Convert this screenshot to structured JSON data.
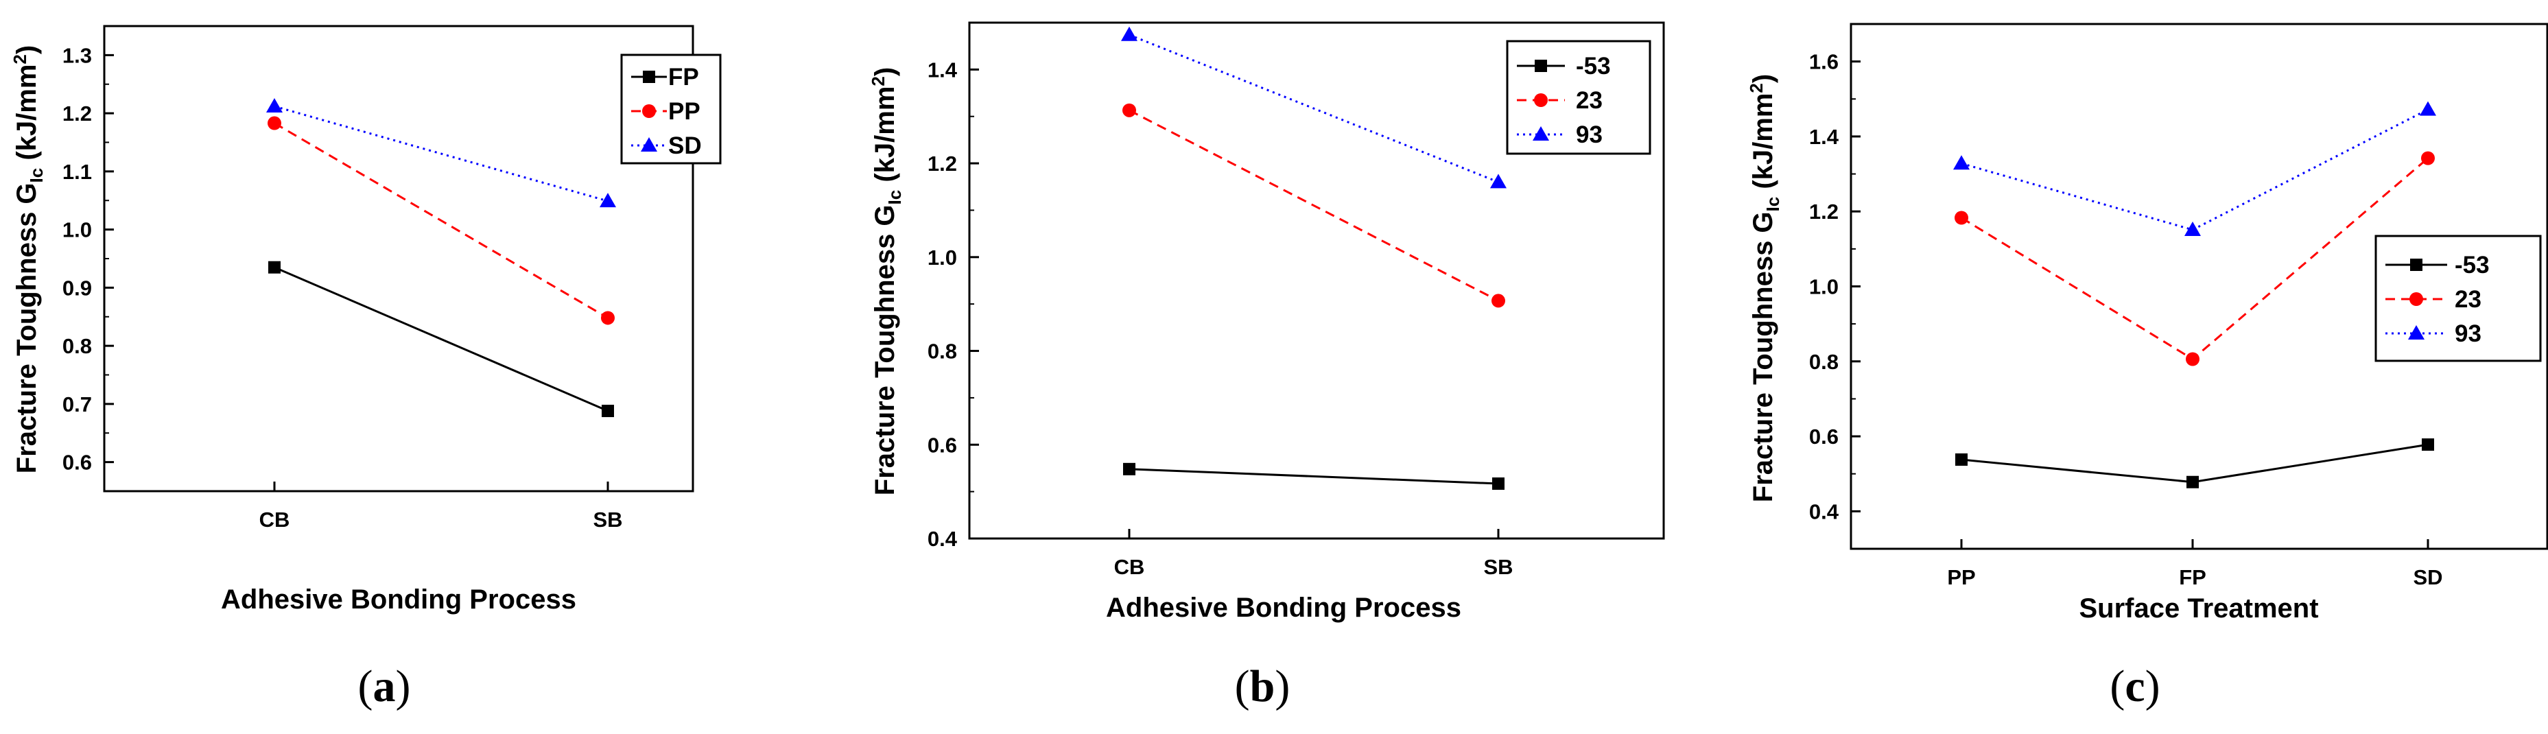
{
  "colors": {
    "FP": "#000000",
    "PP": "#ff0000",
    "SD": "#0000ff"
  },
  "chart_data": [
    {
      "id": "a",
      "type": "line",
      "panel_label": "a",
      "xlabel": "Adhesive Bonding Process",
      "ylabel_main": "Fracture Toughness G",
      "ylabel_sub": "Ic",
      "ylabel_unit": " (kJ/mm",
      "ylabel_sup": "2",
      "ylabel_close": ")",
      "categories": [
        "CB",
        "SB"
      ],
      "ylim": [
        0.55,
        1.35
      ],
      "yticks": [
        0.6,
        0.7,
        0.8,
        0.9,
        1.0,
        1.1,
        1.2,
        1.3
      ],
      "ytick_labels": [
        "0.6",
        "0.7",
        "0.8",
        "0.9",
        "1.0",
        "1.1",
        "1.2",
        "1.3"
      ],
      "legend_position": "top-right",
      "series": [
        {
          "name": "FP",
          "color": "#000000",
          "dash": "solid",
          "marker": "square",
          "values": [
            0.935,
            0.688
          ]
        },
        {
          "name": "PP",
          "color": "#ff0000",
          "dash": "dashed",
          "marker": "circle",
          "values": [
            1.183,
            0.848
          ]
        },
        {
          "name": "SD",
          "color": "#0000ff",
          "dash": "dotted",
          "marker": "triangle",
          "values": [
            1.212,
            1.049
          ]
        }
      ]
    },
    {
      "id": "b",
      "type": "line",
      "panel_label": "b",
      "xlabel": "Adhesive Bonding Process",
      "ylabel_main": "Fracture Toughness G",
      "ylabel_sub": "Ic",
      "ylabel_unit": " (kJ/mm",
      "ylabel_sup": "2",
      "ylabel_close": ")",
      "categories": [
        "CB",
        "SB"
      ],
      "ylim": [
        0.4,
        1.5
      ],
      "yticks": [
        0.4,
        0.6,
        0.8,
        1.0,
        1.2,
        1.4
      ],
      "ytick_labels": [
        "0.4",
        "0.6",
        "0.8",
        "1.0",
        "1.2",
        "1.4"
      ],
      "legend_position": "top-right",
      "series": [
        {
          "name": "-53",
          "color": "#000000",
          "dash": "solid",
          "marker": "square",
          "values": [
            0.548,
            0.517
          ]
        },
        {
          "name": "23",
          "color": "#ff0000",
          "dash": "dashed",
          "marker": "circle",
          "values": [
            1.313,
            0.907
          ]
        },
        {
          "name": "93",
          "color": "#0000ff",
          "dash": "dotted",
          "marker": "triangle",
          "values": [
            1.474,
            1.16
          ]
        }
      ]
    },
    {
      "id": "c",
      "type": "line",
      "panel_label": "c",
      "xlabel": "Surface Treatment",
      "ylabel_main": "Fracture Toughness G",
      "ylabel_sub": "Ic",
      "ylabel_unit": " (kJ/mm",
      "ylabel_sup": "2",
      "ylabel_close": ")",
      "categories": [
        "PP",
        "FP",
        "SD"
      ],
      "ylim": [
        0.3,
        1.7
      ],
      "yticks": [
        0.4,
        0.6,
        0.8,
        1.0,
        1.2,
        1.4,
        1.6
      ],
      "ytick_labels": [
        "0.4",
        "0.6",
        "0.8",
        "1.0",
        "1.2",
        "1.4",
        "1.6"
      ],
      "legend_position": "center-right",
      "series": [
        {
          "name": "-53",
          "color": "#000000",
          "dash": "solid",
          "marker": "square",
          "values": [
            0.538,
            0.478,
            0.578
          ]
        },
        {
          "name": "23",
          "color": "#ff0000",
          "dash": "dashed",
          "marker": "circle",
          "values": [
            1.183,
            0.806,
            1.342
          ]
        },
        {
          "name": "93",
          "color": "#0000ff",
          "dash": "dotted",
          "marker": "triangle",
          "values": [
            1.328,
            1.151,
            1.472
          ]
        }
      ]
    }
  ]
}
